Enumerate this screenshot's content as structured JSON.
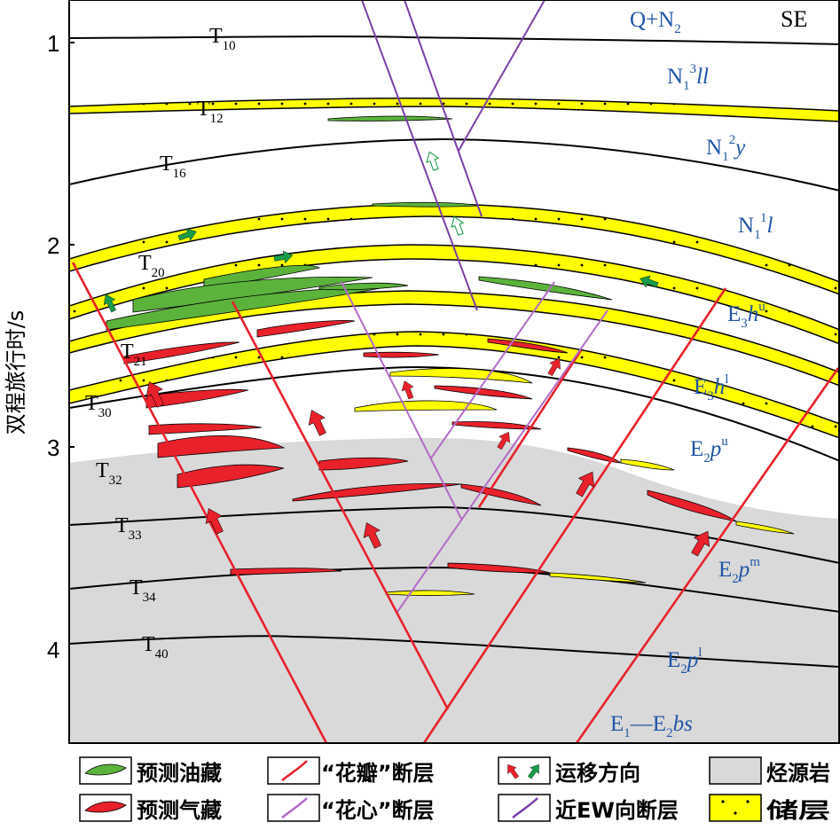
{
  "corner_label": "SE",
  "yaxis": {
    "title": "双程旅行时/s",
    "ticks": [
      "1",
      "2",
      "3",
      "4"
    ]
  },
  "horizons": [
    {
      "base": "T",
      "sub": "10"
    },
    {
      "base": "T",
      "sub": "12"
    },
    {
      "base": "T",
      "sub": "16"
    },
    {
      "base": "T",
      "sub": "20"
    },
    {
      "base": "T",
      "sub": "21"
    },
    {
      "base": "T",
      "sub": "30"
    },
    {
      "base": "T",
      "sub": "32"
    },
    {
      "base": "T",
      "sub": "33"
    },
    {
      "base": "T",
      "sub": "34"
    },
    {
      "base": "T",
      "sub": "40"
    }
  ],
  "strata": {
    "q_n2": {
      "a": "Q+N",
      "b": "2"
    },
    "n1_3ll": {
      "a": "N",
      "b": "1",
      "c": "3",
      "d": "ll"
    },
    "n1_2y": {
      "a": "N",
      "b": "1",
      "c": "2",
      "d": "y"
    },
    "n1_1l": {
      "a": "N",
      "b": "1",
      "c": "1",
      "d": "l"
    },
    "e3hu": {
      "a": "E",
      "b": "3",
      "c": "h",
      "d": "u"
    },
    "e3hl": {
      "a": "E",
      "b": "3",
      "c": "h",
      "d": "l"
    },
    "e2pu": {
      "a": "E",
      "b": "2",
      "c": "p",
      "d": "u"
    },
    "e2pm": {
      "a": "E",
      "b": "2",
      "c": "p",
      "d": "m"
    },
    "e2pl": {
      "a": "E",
      "b": "2",
      "c": "p",
      "d": "l"
    },
    "e1e2bs": {
      "a": "E",
      "b": "1",
      "c": "—E",
      "d": "2",
      "e": "bs"
    }
  },
  "legend": {
    "oil": "预测油藏",
    "gas": "预测气藏",
    "petal_fault": "“花瓣”断层",
    "heart_fault": "“花心”断层",
    "migration": "运移方向",
    "ew_fault": "近EW向断层",
    "source_rock": "烃源岩",
    "reservoir": "储层"
  },
  "colors": {
    "source_rock": "#d9d9d9",
    "reservoir": "#ffff00",
    "oil": "#5bb33c",
    "gas": "#e8212b",
    "petal_fault": "#e8212b",
    "heart_fault": "#b36bc7",
    "ew_fault": "#7b3fa6",
    "strata_text": "#1f56a6",
    "migration_green": "#1a9a4a"
  }
}
